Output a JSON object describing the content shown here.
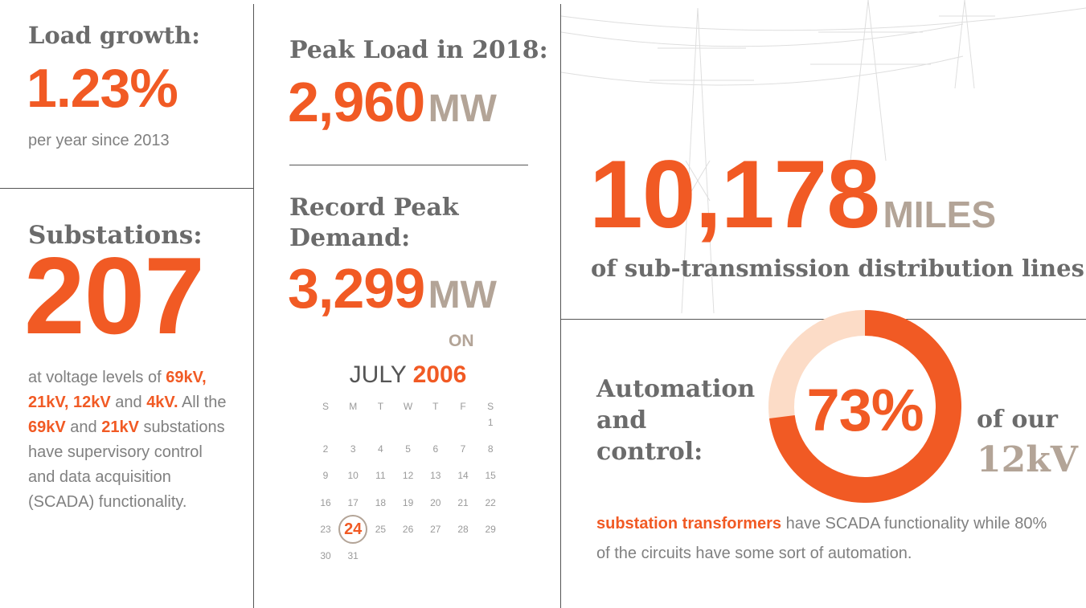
{
  "load_growth": {
    "heading": "Load growth:",
    "value": "1.23%",
    "note": "per year since 2013"
  },
  "substations": {
    "heading": "Substations:",
    "value": "207",
    "description": [
      {
        "text": "at voltage levels of "
      },
      {
        "text": "69kV, 21kV, 12kV",
        "emphasis": true
      },
      {
        "text": " and "
      },
      {
        "text": "4kV.",
        "emphasis": true
      },
      {
        "text": "  All the "
      },
      {
        "text": "69kV",
        "emphasis": true
      },
      {
        "text": " and "
      },
      {
        "text": "21kV",
        "emphasis": true
      },
      {
        "text": " substations have supervisory control and data acquisition (SCADA) functionality."
      }
    ]
  },
  "peak_load": {
    "heading": "Peak Load in 2018:",
    "value": "2,960",
    "unit": "MW"
  },
  "record_peak": {
    "heading": "Record Peak Demand:",
    "value": "3,299",
    "unit": "MW",
    "on": "ON",
    "month": "JULY",
    "year": "2006",
    "weekdays": [
      "S",
      "M",
      "T",
      "W",
      "T",
      "F",
      "S"
    ],
    "weeks": [
      [
        null,
        null,
        null,
        null,
        null,
        null,
        1
      ],
      [
        2,
        3,
        4,
        5,
        6,
        7,
        8
      ],
      [
        9,
        10,
        11,
        12,
        13,
        14,
        15
      ],
      [
        16,
        17,
        18,
        19,
        20,
        21,
        22
      ],
      [
        23,
        24,
        25,
        26,
        27,
        28,
        29
      ],
      [
        30,
        31
      ]
    ],
    "highlighted_day": 24
  },
  "lines": {
    "value": "10,178",
    "unit": "MILES",
    "caption": "of sub-transmission distribution lines"
  },
  "automation": {
    "heading": "Automation and control:",
    "percent": 73,
    "percent_label": "73%",
    "suffix": "of our",
    "suffix_unit": "12kV",
    "description": [
      {
        "text": "substation transformers",
        "emphasis": true
      },
      {
        "text": " have SCADA functionality while 80% of the circuits have some sort of automation."
      }
    ]
  }
}
